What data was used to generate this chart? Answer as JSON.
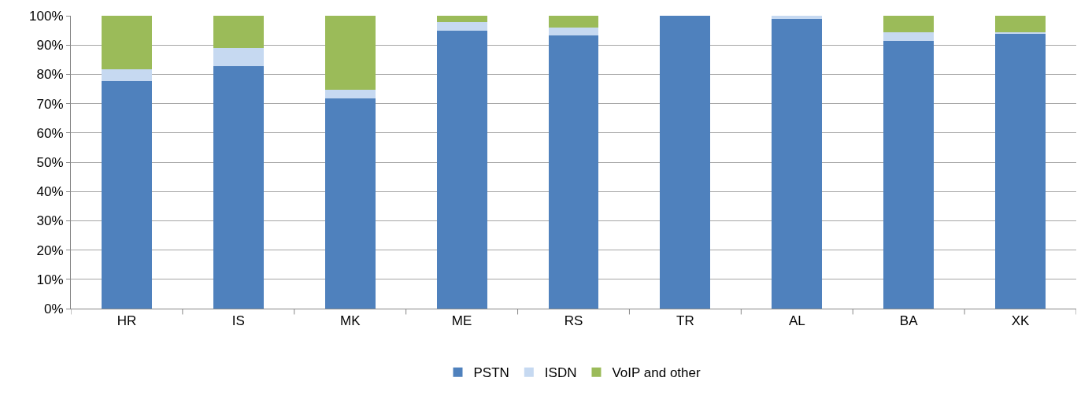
{
  "chart_data": {
    "type": "bar",
    "stacked": true,
    "categories": [
      "HR",
      "IS",
      "MK",
      "ME",
      "RS",
      "TR",
      "AL",
      "BA",
      "XK"
    ],
    "series": [
      {
        "name": "PSTN",
        "color": "#4f81bd",
        "values": [
          77.8,
          82.8,
          71.8,
          94.9,
          93.2,
          100,
          98.8,
          91.4,
          93.7
        ]
      },
      {
        "name": "ISDN",
        "color": "#c6d9f1",
        "values": [
          3.8,
          6.2,
          2.8,
          3,
          2.9,
          null,
          1.2,
          2.9,
          0.6
        ]
      },
      {
        "name": "VoIP and other",
        "color": "#9bbb59",
        "values": [
          18.4,
          11,
          25.4,
          2.1,
          3.9,
          null,
          null,
          5.7,
          5.7
        ]
      }
    ],
    "ylim": [
      0,
      100
    ],
    "yticks": [
      {
        "value": 0,
        "label": "0%"
      },
      {
        "value": 10,
        "label": "10%"
      },
      {
        "value": 20,
        "label": "20%"
      },
      {
        "value": 30,
        "label": "30%"
      },
      {
        "value": 40,
        "label": "40%"
      },
      {
        "value": 50,
        "label": "50%"
      },
      {
        "value": 60,
        "label": "60%"
      },
      {
        "value": 70,
        "label": "70%"
      },
      {
        "value": 80,
        "label": "80%"
      },
      {
        "value": 90,
        "label": "90%"
      },
      {
        "value": 100,
        "label": "100%"
      }
    ],
    "grid": "y",
    "legend": "bottom"
  }
}
